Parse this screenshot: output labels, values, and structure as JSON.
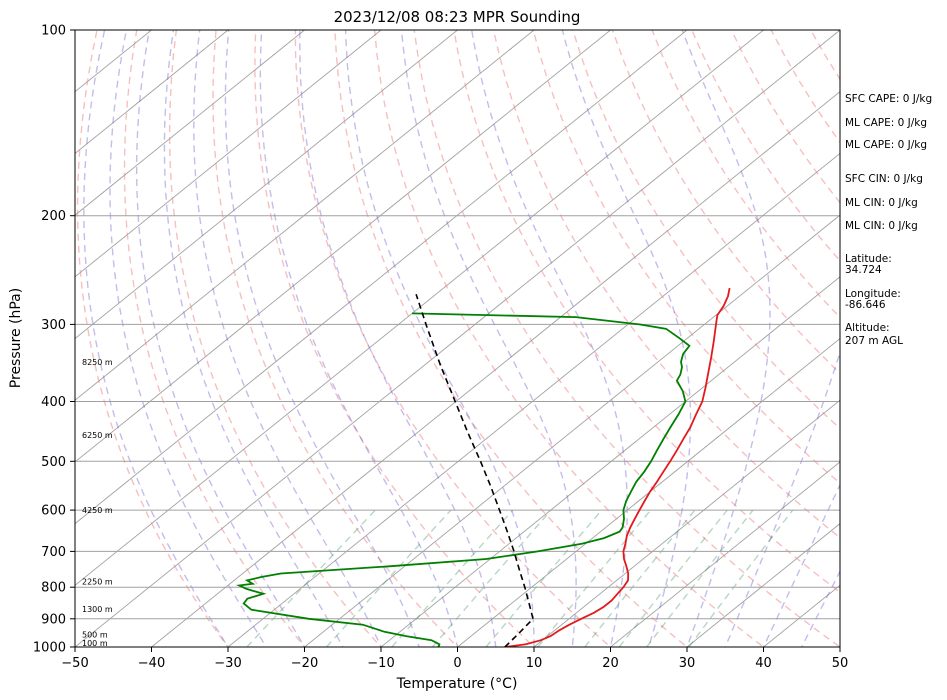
{
  "chart_data": {
    "type": "line",
    "title": "2023/12/08 08:23 MPR Sounding",
    "xlabel": "Temperature (°C)",
    "ylabel": "Pressure (hPa)",
    "xlim": [
      -50,
      50
    ],
    "ylim": [
      1000,
      100
    ],
    "y_scale": "log",
    "grid": true,
    "x_ticks": [
      -50,
      -40,
      -30,
      -20,
      -10,
      0,
      10,
      20,
      30,
      40,
      50
    ],
    "y_ticks": [
      1000,
      900,
      800,
      700,
      600,
      500,
      400,
      300,
      200,
      100
    ],
    "series": [
      {
        "color": "#e31a1c",
        "points": [
          [
            1000,
            6.2
          ],
          [
            990,
            8.5
          ],
          [
            975,
            9.8
          ],
          [
            960,
            10.4
          ],
          [
            940,
            10.6
          ],
          [
            920,
            11.0
          ],
          [
            900,
            11.6
          ],
          [
            880,
            12.3
          ],
          [
            860,
            12.6
          ],
          [
            840,
            12.6
          ],
          [
            820,
            12.3
          ],
          [
            800,
            12.0
          ],
          [
            780,
            11.5
          ],
          [
            760,
            10.4
          ],
          [
            740,
            9.0
          ],
          [
            720,
            7.5
          ],
          [
            700,
            6.2
          ],
          [
            680,
            5.2
          ],
          [
            660,
            4.1
          ],
          [
            640,
            3.2
          ],
          [
            620,
            2.4
          ],
          [
            600,
            1.6
          ],
          [
            580,
            0.8
          ],
          [
            560,
            0.0
          ],
          [
            540,
            -0.7
          ],
          [
            520,
            -1.5
          ],
          [
            500,
            -2.3
          ],
          [
            480,
            -3.2
          ],
          [
            460,
            -4.2
          ],
          [
            440,
            -5.2
          ],
          [
            420,
            -6.5
          ],
          [
            400,
            -7.8
          ],
          [
            380,
            -9.6
          ],
          [
            360,
            -11.6
          ],
          [
            340,
            -13.7
          ],
          [
            320,
            -16.0
          ],
          [
            300,
            -18.5
          ],
          [
            290,
            -19.8
          ],
          [
            280,
            -20.5
          ],
          [
            270,
            -21.5
          ],
          [
            262,
            -22.6
          ]
        ]
      },
      {
        "color": "#008000",
        "points": [
          [
            1000,
            -2.5
          ],
          [
            990,
            -2.8
          ],
          [
            975,
            -4.5
          ],
          [
            960,
            -8.5
          ],
          [
            945,
            -12.0
          ],
          [
            920,
            -16.0
          ],
          [
            900,
            -24.0
          ],
          [
            870,
            -33.0
          ],
          [
            850,
            -35.0
          ],
          [
            835,
            -35.3
          ],
          [
            820,
            -34.0
          ],
          [
            805,
            -37.0
          ],
          [
            795,
            -38.5
          ],
          [
            790,
            -37.0
          ],
          [
            780,
            -38.3
          ],
          [
            770,
            -37.0
          ],
          [
            760,
            -35.0
          ],
          [
            740,
            -22.0
          ],
          [
            720,
            -10.5
          ],
          [
            700,
            -5.0
          ],
          [
            680,
            -0.5
          ],
          [
            666,
            1.5
          ],
          [
            650,
            2.5
          ],
          [
            640,
            2.2
          ],
          [
            620,
            1.0
          ],
          [
            600,
            -0.5
          ],
          [
            580,
            -1.6
          ],
          [
            560,
            -2.5
          ],
          [
            540,
            -3.4
          ],
          [
            520,
            -4.0
          ],
          [
            500,
            -4.8
          ],
          [
            480,
            -5.8
          ],
          [
            460,
            -6.8
          ],
          [
            440,
            -7.8
          ],
          [
            420,
            -8.8
          ],
          [
            400,
            -10.0
          ],
          [
            385,
            -12.0
          ],
          [
            370,
            -14.5
          ],
          [
            362,
            -15.0
          ],
          [
            352,
            -16.0
          ],
          [
            345,
            -17.0
          ],
          [
            335,
            -18.0
          ],
          [
            325,
            -18.5
          ],
          [
            316,
            -21.0
          ],
          [
            305,
            -24.3
          ],
          [
            300,
            -28.5
          ],
          [
            292,
            -38.0
          ],
          [
            288,
            -60.0
          ]
        ]
      },
      {
        "color": "#000000",
        "dashed": true,
        "points": [
          [
            1000,
            6.2
          ],
          [
            950,
            5.8
          ],
          [
            900,
            5.3
          ],
          [
            850,
            2.3
          ],
          [
            800,
            -0.9
          ],
          [
            750,
            -4.4
          ],
          [
            700,
            -8.1
          ],
          [
            650,
            -12.2
          ],
          [
            600,
            -16.7
          ],
          [
            550,
            -21.6
          ],
          [
            500,
            -27.1
          ],
          [
            450,
            -33.3
          ],
          [
            400,
            -40.1
          ],
          [
            350,
            -47.8
          ],
          [
            300,
            -56.4
          ],
          [
            268,
            -62.6
          ]
        ]
      }
    ],
    "height_labels": [
      {
        "p": 985,
        "text": "100 m"
      },
      {
        "p": 955,
        "text": "500 m"
      },
      {
        "p": 868,
        "text": "1300 m"
      },
      {
        "p": 783,
        "text": "2250 m"
      },
      {
        "p": 600,
        "text": "4250 m"
      },
      {
        "p": 453,
        "text": "6250 m"
      },
      {
        "p": 345,
        "text": "8250 m"
      }
    ]
  },
  "info": {
    "sfc_cape": "SFC CAPE: 0 J/kg",
    "ml_cape_1": "ML CAPE: 0 J/kg",
    "ml_cape_2": "ML CAPE: 0 J/kg",
    "sfc_cin": "SFC CIN: 0 J/kg",
    "ml_cin_1": "ML CIN: 0 J/kg",
    "ml_cin_2": "ML CIN: 0 J/kg",
    "latitude_label": "Latitude:",
    "latitude_value": "34.724",
    "longitude_label": "Longitude:",
    "longitude_value": "-86.646",
    "altitude_label": "Altitude:",
    "altitude_value": "207 m AGL"
  }
}
